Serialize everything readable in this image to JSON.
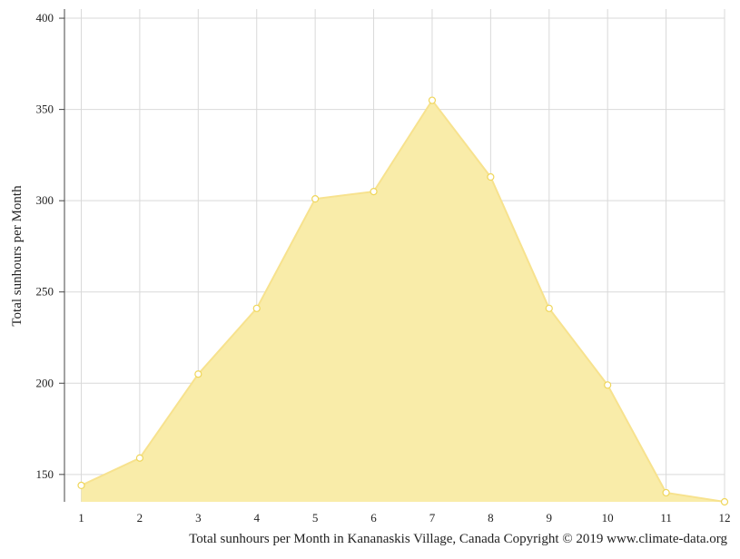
{
  "colors": {
    "area_fill": "#f9eca9",
    "area_line": "#f7e28e",
    "marker_stroke": "#efd65b",
    "marker_fill": "#ffffff",
    "grid": "#d9d9d9",
    "axis": "#444444"
  },
  "chart_data": {
    "type": "area",
    "ylabel": "Total sunhours per Month",
    "caption": "Total sunhours per Month in Kananaskis Village, Canada Copyright © 2019 www.climate-data.org",
    "x": [
      1,
      2,
      3,
      4,
      5,
      6,
      7,
      8,
      9,
      10,
      11,
      12
    ],
    "x_tick_labels": [
      "1",
      "2",
      "3",
      "4",
      "5",
      "6",
      "7",
      "8",
      "9",
      "10",
      "11",
      "12"
    ],
    "y_ticks": [
      150,
      200,
      250,
      300,
      350,
      400
    ],
    "y_tick_labels": [
      "150",
      "200",
      "250",
      "300",
      "350",
      "400"
    ],
    "ylim": [
      135,
      405
    ],
    "grid": true,
    "series": [
      {
        "values": [
          144,
          159,
          205,
          241,
          301,
          305,
          355,
          313,
          241,
          199,
          140,
          135
        ]
      }
    ]
  }
}
